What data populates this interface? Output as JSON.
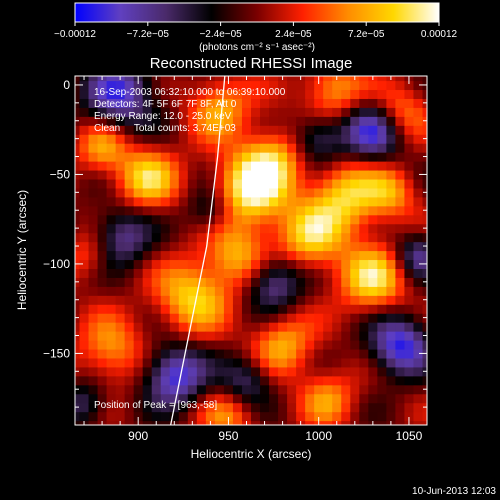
{
  "chart_data": {
    "type": "heatmap",
    "title": "Reconstructed RHESSI Image",
    "xlabel": "Heliocentric X (arcsec)",
    "ylabel": "Heliocentric Y (arcsec)",
    "xlim": [
      865,
      1060
    ],
    "ylim": [
      -190,
      5
    ],
    "x_ticks": [
      900,
      950,
      1000,
      1050
    ],
    "y_ticks": [
      0,
      -50,
      -100,
      -150
    ],
    "colorbar": {
      "label": "(photons cm⁻² s⁻¹ asec⁻²)",
      "range": [
        -0.00012,
        0.00012
      ],
      "tick_labels": [
        "−0.00012",
        "−7.2e−05",
        "−2.4e−05",
        "2.4e−05",
        "7.2e−05",
        "0.00012"
      ],
      "colors": [
        "#0000ff",
        "#6040c0",
        "#4a2a6a",
        "#000000",
        "#7a0000",
        "#ff2000",
        "#ff8c00",
        "#ffd700",
        "#ffffff"
      ]
    },
    "annotations": [
      "16-Sep-2003 06:32:10.000 to 06:39:10.000",
      "Detectors: 4F 5F 6F 7F 8F, Att 0",
      "Energy Range: 12.0 - 25.0 keV",
      "Clean     Total counts: 3.74E+03"
    ],
    "peak_label": "Position of Peak = [963,-58]",
    "peak": [
      963,
      -58
    ],
    "blobs": [
      {
        "x": 963,
        "y": -58,
        "amp": 1.0,
        "r": 14
      },
      {
        "x": 975,
        "y": -40,
        "amp": 0.55,
        "r": 12
      },
      {
        "x": 905,
        "y": -52,
        "amp": 0.75,
        "r": 12
      },
      {
        "x": 880,
        "y": -35,
        "amp": 0.55,
        "r": 10
      },
      {
        "x": 945,
        "y": -12,
        "amp": 0.6,
        "r": 12
      },
      {
        "x": 1008,
        "y": -3,
        "amp": 0.6,
        "r": 12
      },
      {
        "x": 1045,
        "y": -15,
        "amp": 0.55,
        "r": 11
      },
      {
        "x": 1015,
        "y": -62,
        "amp": 0.75,
        "r": 14
      },
      {
        "x": 995,
        "y": -85,
        "amp": 0.7,
        "r": 13
      },
      {
        "x": 1040,
        "y": -60,
        "amp": 0.5,
        "r": 10
      },
      {
        "x": 1030,
        "y": -108,
        "amp": 0.8,
        "r": 13
      },
      {
        "x": 930,
        "y": -118,
        "amp": 0.75,
        "r": 14
      },
      {
        "x": 955,
        "y": -95,
        "amp": 0.6,
        "r": 12
      },
      {
        "x": 980,
        "y": -145,
        "amp": 0.6,
        "r": 12
      },
      {
        "x": 885,
        "y": -148,
        "amp": 0.55,
        "r": 13
      },
      {
        "x": 1005,
        "y": -175,
        "amp": 0.5,
        "r": 11
      },
      {
        "x": 950,
        "y": -185,
        "amp": 0.45,
        "r": 11
      },
      {
        "x": 873,
        "y": -95,
        "amp": 0.4,
        "r": 10
      },
      {
        "x": 890,
        "y": -5,
        "amp": -0.8,
        "r": 14
      },
      {
        "x": 1030,
        "y": -25,
        "amp": -0.85,
        "r": 12
      },
      {
        "x": 1045,
        "y": -145,
        "amp": -0.9,
        "r": 12
      },
      {
        "x": 920,
        "y": -162,
        "amp": -0.9,
        "r": 12
      },
      {
        "x": 975,
        "y": -110,
        "amp": -0.7,
        "r": 11
      },
      {
        "x": 890,
        "y": -85,
        "amp": -0.65,
        "r": 12
      },
      {
        "x": 1000,
        "y": -30,
        "amp": -0.6,
        "r": 10
      },
      {
        "x": 960,
        "y": -165,
        "amp": -0.55,
        "r": 10
      },
      {
        "x": 1055,
        "y": -95,
        "amp": -0.6,
        "r": 9
      },
      {
        "x": 940,
        "y": -70,
        "amp": -0.45,
        "r": 9
      },
      {
        "x": 870,
        "y": -178,
        "amp": -0.5,
        "r": 9
      }
    ],
    "limb_curve": [
      [
        948,
        5
      ],
      [
        944,
        -40
      ],
      [
        938,
        -90
      ],
      [
        928,
        -140
      ],
      [
        918,
        -190
      ]
    ]
  },
  "footer": {
    "date": "10-Jun-2013 12:03"
  }
}
